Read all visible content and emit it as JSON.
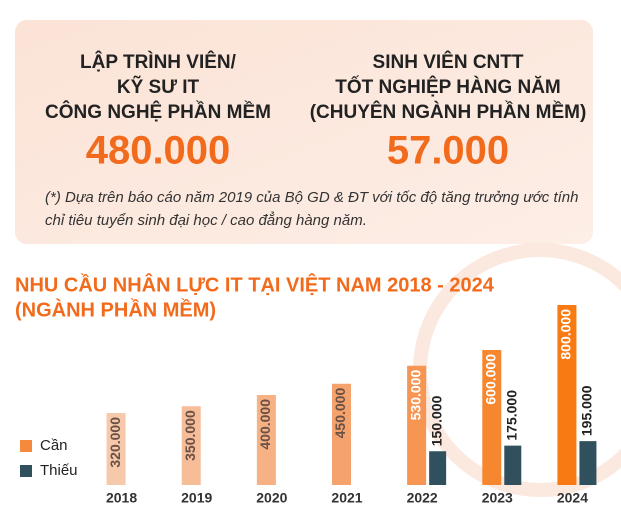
{
  "card": {
    "left": {
      "lines": [
        "LẬP TRÌNH VIÊN/",
        "KỸ SƯ IT",
        "CÔNG NGHỆ PHẦN MỀM"
      ],
      "number": "480.000"
    },
    "right": {
      "lines": [
        "SINH VIÊN CNTT",
        "TỐT NGHIỆP HÀNG NĂM",
        "(CHUYÊN NGÀNH PHẦN MỀM)"
      ],
      "number": "57.000"
    },
    "note": "(*) Dựa trên báo cáo năm 2019 của Bộ GD & ĐT với tốc độ tăng trưởng ước tính chỉ tiêu tuyển sinh đại học / cao đẳng hàng năm."
  },
  "chart_data": {
    "type": "bar",
    "title": "NHU CẦU NHÂN LỰC IT TẠI VIỆT NAM 2018 - 2024",
    "subtitle": "(NGÀNH PHẦN MỀM)",
    "categories": [
      "2018",
      "2019",
      "2020",
      "2021",
      "2022",
      "2023",
      "2024"
    ],
    "series": [
      {
        "name": "Cần",
        "color": "#f58a3c",
        "colors": [
          "#f6c9aa",
          "#f6bd98",
          "#f6b185",
          "#f6a26c",
          "#f79652",
          "#f7872f",
          "#f77a12"
        ],
        "values": [
          320000,
          350000,
          400000,
          450000,
          530000,
          600000,
          800000
        ],
        "value_labels": [
          "320.000",
          "350.000",
          "400.000",
          "450.000",
          "530.000",
          "600.000",
          "800.000"
        ]
      },
      {
        "name": "Thiếu",
        "color": "#2f505c",
        "values": [
          null,
          null,
          null,
          null,
          150000,
          175000,
          195000
        ],
        "value_labels": [
          null,
          null,
          null,
          null,
          "150.000",
          "175.000",
          "195.000"
        ]
      }
    ],
    "legend": "left"
  }
}
